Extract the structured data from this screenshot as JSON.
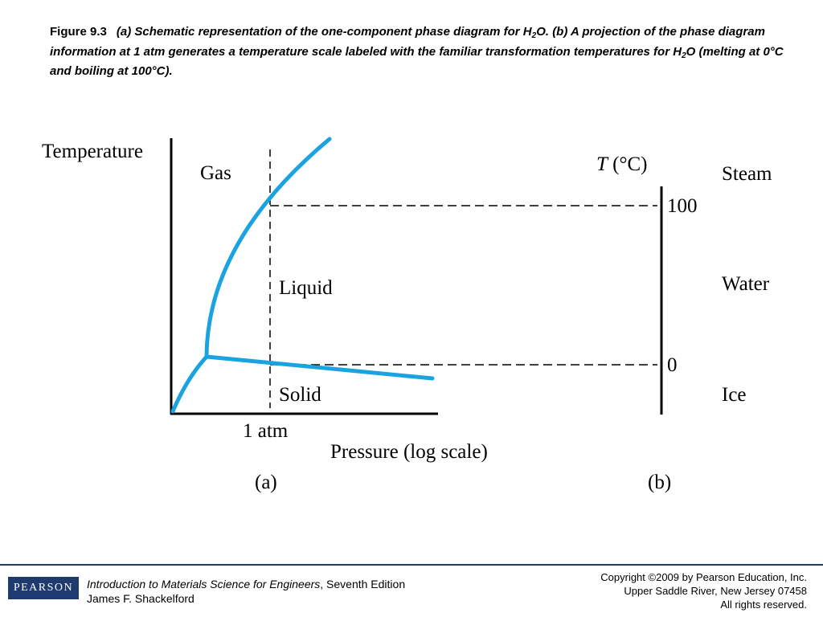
{
  "caption": {
    "figure_number": "Figure 9.3",
    "text_before_sub_1": "(a) Schematic representation of the one-component phase diagram for H",
    "sub_1": "2",
    "text_after_sub_1": "O. (b) A projection of the phase diagram information at 1 atm generates a temperature scale labeled with the familiar transformation temperatures for H",
    "sub_2": "2",
    "text_after_sub_2": "O (melting at 0°C and boiling at 100°C)."
  },
  "diagram_a": {
    "ylabel": "Temperature",
    "xlabel": "Pressure (log scale)",
    "pressure_tick": "1 atm",
    "regions": {
      "gas": "Gas",
      "liquid": "Liquid",
      "solid": "Solid"
    },
    "panel_label": "(a)",
    "curve_color": "#1aa3e0"
  },
  "diagram_b": {
    "axis_label_T": "T",
    "axis_label_unit": " (°C)",
    "tick_high": "100",
    "tick_low": "0",
    "phases": {
      "steam": "Steam",
      "water": "Water",
      "ice": "Ice"
    },
    "panel_label": "(b)"
  },
  "footer": {
    "logo": "PEARSON",
    "book_title": "Introduction to Materials Science for Engineers",
    "edition": ", Seventh Edition",
    "author": "James F. Shackelford",
    "copyright": "Copyright ©2009 by Pearson Education, Inc.",
    "address": "Upper Saddle River, New Jersey 07458",
    "rights": "All rights reserved.",
    "accent_color": "#1e3a6e"
  }
}
